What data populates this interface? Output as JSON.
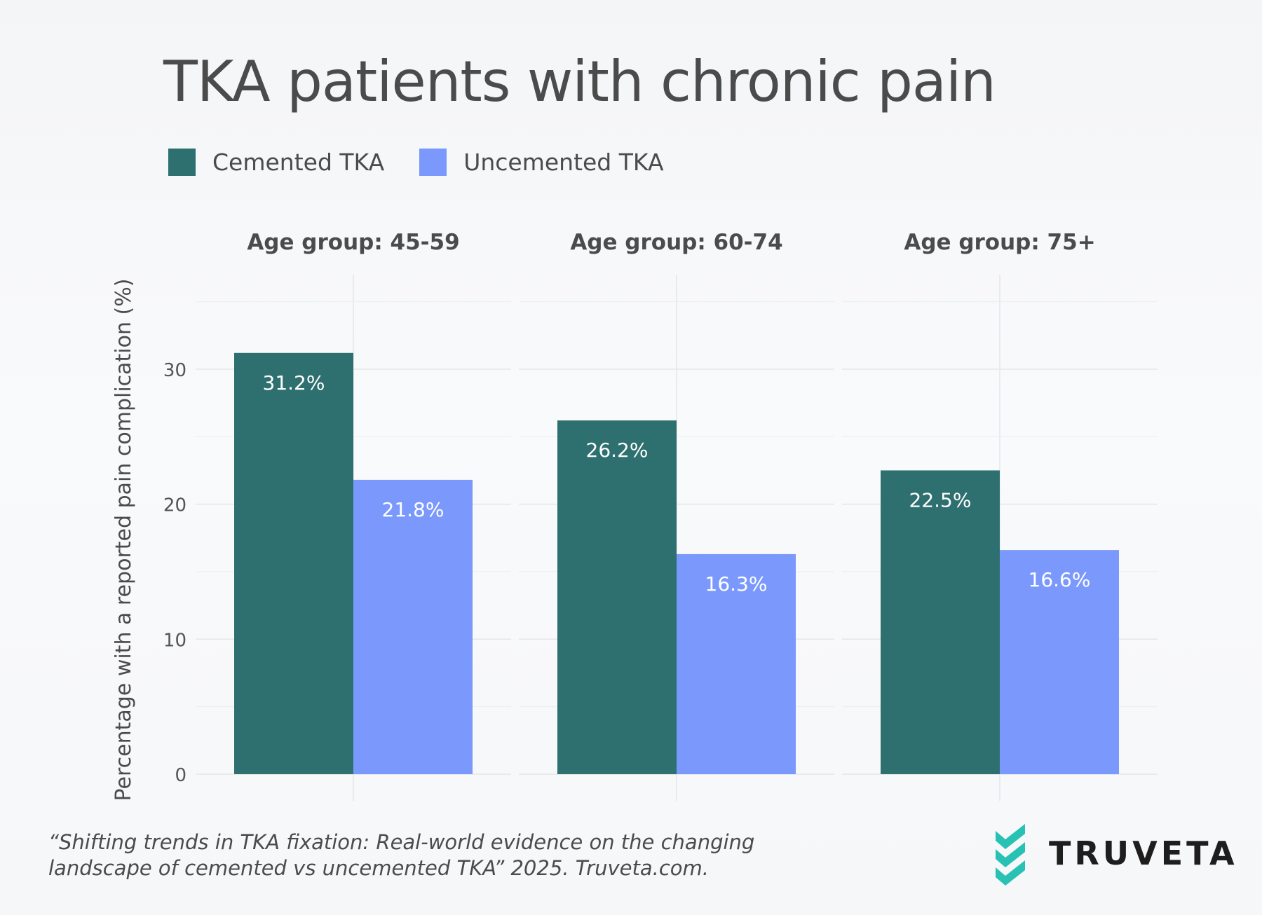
{
  "title": "TKA patients with chronic pain",
  "colors": {
    "cemented": "#2e7070",
    "uncemented": "#7b99fc",
    "grid": "#e4e6e9",
    "logo_accent": "#27c2b4"
  },
  "chart_data": {
    "type": "bar",
    "title": "TKA patients with chronic pain",
    "ylabel": "Percentage with a reported pain complication (%)",
    "xlabel": "",
    "ylim": [
      0,
      37
    ],
    "yticks": [
      0,
      10,
      20,
      30
    ],
    "grid": true,
    "legend_position": "top-left",
    "legend": [
      "Cemented TKA",
      "Uncemented TKA"
    ],
    "facets": [
      "Age group: 45-59",
      "Age group: 60-74",
      "Age group: 75+"
    ],
    "series": [
      {
        "name": "Cemented TKA",
        "values": [
          31.2,
          26.2,
          22.5
        ],
        "labels": [
          "31.2%",
          "26.2%",
          "22.5%"
        ]
      },
      {
        "name": "Uncemented TKA",
        "values": [
          21.8,
          16.3,
          16.6
        ],
        "labels": [
          "21.8%",
          "16.3%",
          "16.6%"
        ]
      }
    ]
  },
  "citation": {
    "line1": "“Shifting trends in TKA fixation: Real-world evidence on the changing",
    "line2": "landscape of cemented vs uncemented TKA” 2025. Truveta.com."
  },
  "logo": {
    "icon": "truveta-chevron-icon",
    "text": "TRUVETA"
  }
}
